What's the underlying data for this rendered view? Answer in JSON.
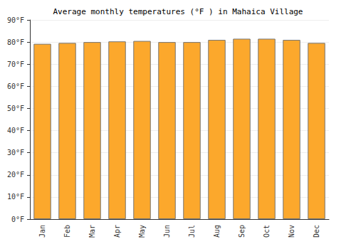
{
  "chart_data": {
    "type": "bar",
    "title": "Average monthly temperatures (°F ) in Mahaica Village",
    "categories": [
      "Jan",
      "Feb",
      "Mar",
      "Apr",
      "May",
      "Jun",
      "Jul",
      "Aug",
      "Sep",
      "Oct",
      "Nov",
      "Dec"
    ],
    "values": [
      79.2,
      79.6,
      80.0,
      80.3,
      80.5,
      80.0,
      80.0,
      81.0,
      81.5,
      81.5,
      81.0,
      79.6
    ],
    "color": "#fca82c",
    "ylim": [
      0,
      90
    ],
    "yticks": [
      {
        "value": 0,
        "label": "0°F"
      },
      {
        "value": 10,
        "label": "10°F"
      },
      {
        "value": 20,
        "label": "20°F"
      },
      {
        "value": 30,
        "label": "30°F"
      },
      {
        "value": 40,
        "label": "40°F"
      },
      {
        "value": 50,
        "label": "50°F"
      },
      {
        "value": 60,
        "label": "60°F"
      },
      {
        "value": 70,
        "label": "70°F"
      },
      {
        "value": 80,
        "label": "80°F"
      },
      {
        "value": 90,
        "label": "90°F"
      }
    ],
    "grid": true
  }
}
